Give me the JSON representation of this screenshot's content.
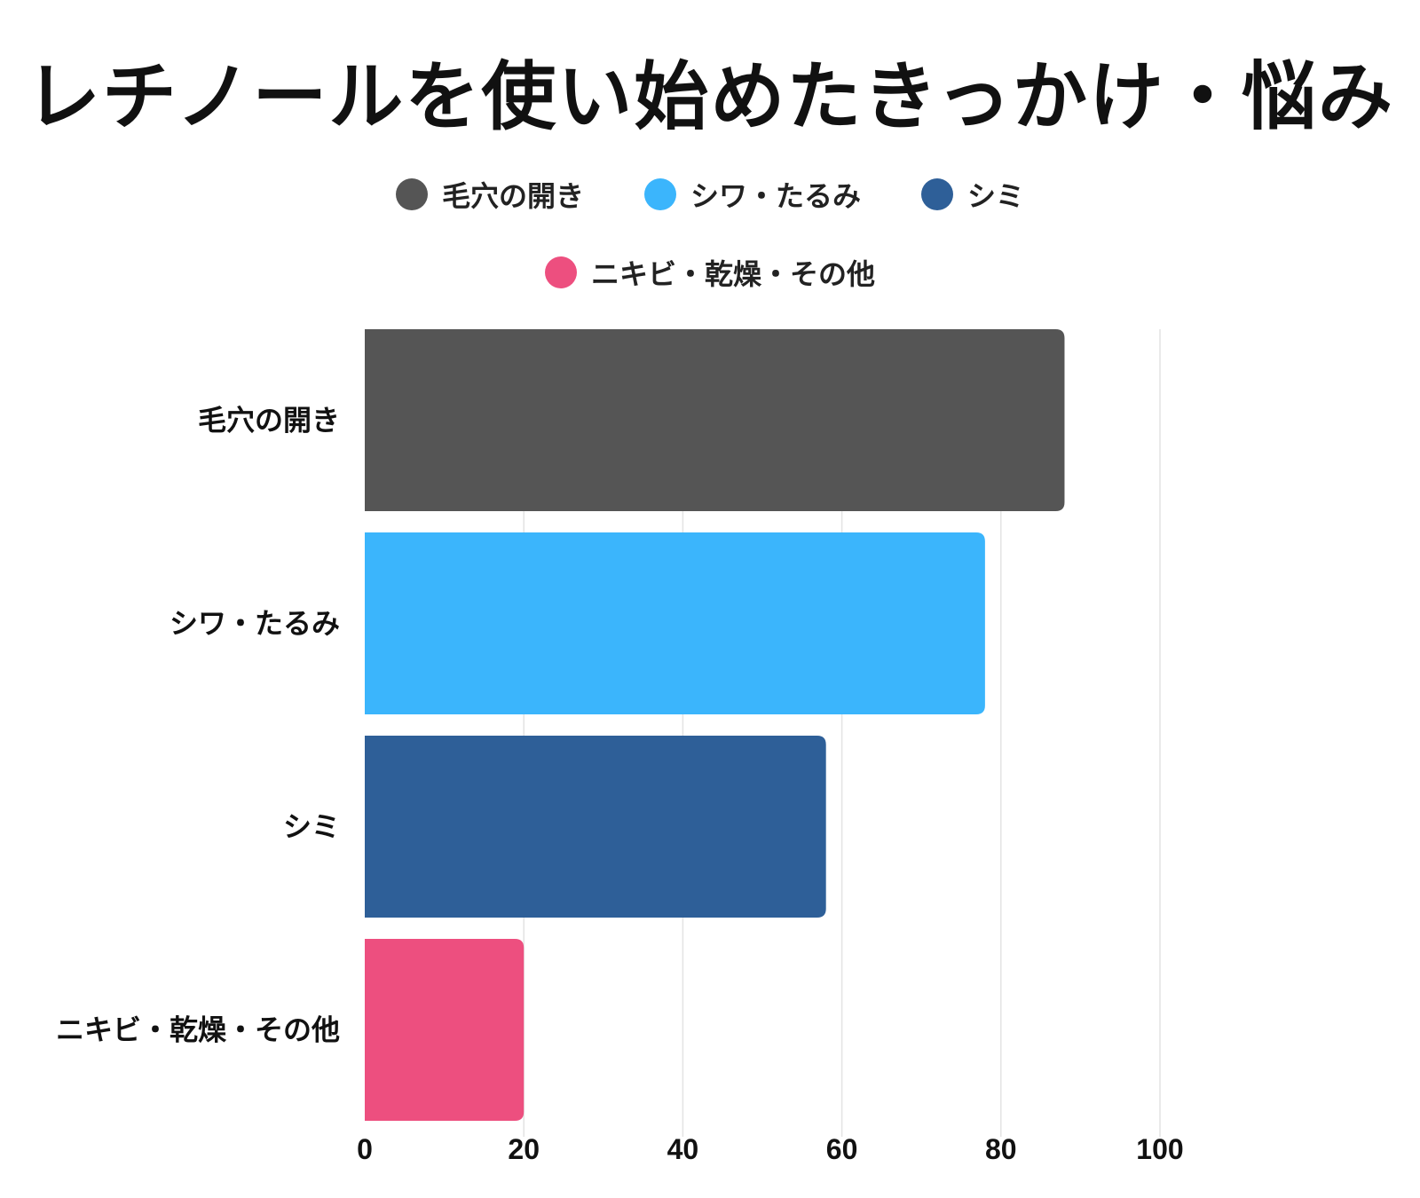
{
  "chart_data": {
    "type": "bar",
    "orientation": "horizontal",
    "title": "レチノールを使い始めたきっかけ・悩み",
    "categories": [
      "毛穴の開き",
      "シワ・たるみ",
      "シミ",
      "ニキビ・乾燥・その他"
    ],
    "values": [
      88,
      78,
      58,
      20
    ],
    "colors": [
      "#555555",
      "#3bb5fc",
      "#2e5f98",
      "#ed4f7f"
    ],
    "xlim": [
      0,
      100
    ],
    "xticks": [
      0,
      20,
      40,
      60,
      80,
      100
    ],
    "xlabel": "",
    "ylabel": "",
    "grid": true,
    "legend_position": "top",
    "legend": [
      {
        "label": "毛穴の開き",
        "color": "#555555"
      },
      {
        "label": "シワ・たるみ",
        "color": "#3bb5fc"
      },
      {
        "label": "シミ",
        "color": "#2e5f98"
      },
      {
        "label": "ニキビ・乾燥・その他",
        "color": "#ed4f7f"
      }
    ]
  }
}
